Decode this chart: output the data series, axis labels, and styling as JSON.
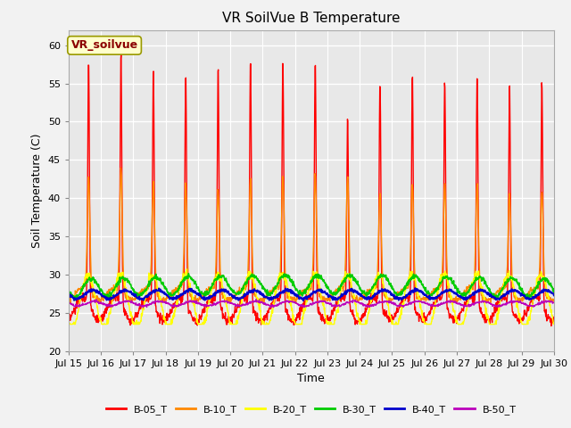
{
  "title": "VR SoilVue B Temperature",
  "xlabel": "Time",
  "ylabel": "Soil Temperature (C)",
  "xlim": [
    0,
    15
  ],
  "ylim": [
    20,
    62
  ],
  "yticks": [
    20,
    25,
    30,
    35,
    40,
    45,
    50,
    55,
    60
  ],
  "xtick_labels": [
    "Jul 15",
    "Jul 16",
    "Jul 17",
    "Jul 18",
    "Jul 19",
    "Jul 20",
    "Jul 21",
    "Jul 22",
    "Jul 23",
    "Jul 24",
    "Jul 25",
    "Jul 26",
    "Jul 27",
    "Jul 28",
    "Jul 29",
    "Jul 30"
  ],
  "legend_label": "VR_soilvue",
  "series_labels": [
    "B-05_T",
    "B-10_T",
    "B-20_T",
    "B-30_T",
    "B-40_T",
    "B-50_T"
  ],
  "series_colors": [
    "#ff0000",
    "#ff8800",
    "#ffff00",
    "#00cc00",
    "#0000cc",
    "#bb00bb"
  ],
  "background_color": "#e8e8e8",
  "title_fontsize": 11,
  "axis_label_fontsize": 9,
  "tick_fontsize": 8,
  "annotation_fontsize": 9,
  "legend_fontsize": 8
}
